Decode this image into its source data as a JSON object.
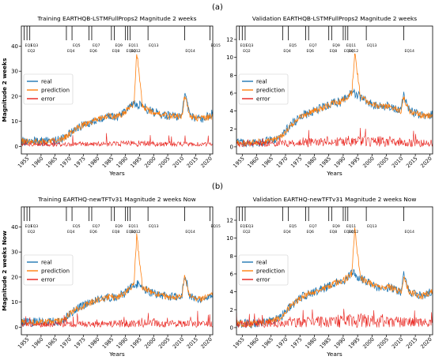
{
  "figure": {
    "label_a": "(a)",
    "label_b": "(b)"
  },
  "colors": {
    "real": "#1f77b4",
    "prediction": "#ff7f0e",
    "error": "#e8201a",
    "eq_line": "#000000"
  },
  "chart_data": [
    {
      "type": "line",
      "title": "Training  EARTHQB-LSTMFullProps2 Magnitude 2 weeks",
      "xlabel": "Years",
      "ylabel": "Magnitude 2 weeks",
      "xlim": [
        1953,
        2021
      ],
      "ylim": [
        -3,
        48
      ],
      "x_ticks": [
        1955,
        1960,
        1965,
        1970,
        1975,
        1980,
        1985,
        1990,
        1995,
        2000,
        2005,
        2010,
        2015,
        2020
      ],
      "y_ticks": [
        0,
        10,
        20,
        30,
        40
      ],
      "legend": {
        "placement": "center-left",
        "entries": [
          "real",
          "prediction",
          "error"
        ]
      },
      "events": [
        {
          "label": "EQ1",
          "year": 1954
        },
        {
          "label": "EQ2",
          "year": 1955
        },
        {
          "label": "EQ3",
          "year": 1956
        },
        {
          "label": "EQ4",
          "year": 1969
        },
        {
          "label": "EQ5",
          "year": 1971
        },
        {
          "label": "EQ6",
          "year": 1977
        },
        {
          "label": "EQ7",
          "year": 1978
        },
        {
          "label": "EQ8",
          "year": 1985
        },
        {
          "label": "EQ9",
          "year": 1986
        },
        {
          "label": "EQ10",
          "year": 1990
        },
        {
          "label": "EQ11",
          "year": 1990.8
        },
        {
          "label": "EQ12",
          "year": 1991.6
        },
        {
          "label": "EQ13",
          "year": 1998
        },
        {
          "label": "EQ14",
          "year": 2011
        },
        {
          "label": "EQ15",
          "year": 2020
        }
      ],
      "series": [
        {
          "name": "real",
          "x": [
            1953,
            1958,
            1963,
            1968,
            1972,
            1976,
            1980,
            1984,
            1987,
            1989,
            1991,
            1993,
            1994,
            1996,
            1999,
            2002,
            2006,
            2010,
            2011,
            2013,
            2017,
            2021
          ],
          "y": [
            2,
            2,
            2,
            3,
            7,
            9,
            11,
            12,
            12,
            13,
            15,
            17,
            17,
            16,
            14,
            13,
            12,
            12,
            21,
            12,
            11,
            13
          ]
        },
        {
          "name": "prediction",
          "x": [
            1953,
            1958,
            1963,
            1968,
            1972,
            1976,
            1980,
            1984,
            1987,
            1989,
            1991,
            1993,
            1994,
            1996,
            1999,
            2002,
            2006,
            2010,
            2011,
            2013,
            2017,
            2021
          ],
          "y": [
            2,
            2,
            2,
            3,
            7,
            9,
            11,
            12,
            12,
            13,
            15,
            17,
            38,
            16,
            14,
            13,
            12,
            12,
            20,
            12,
            11,
            12
          ]
        },
        {
          "name": "error",
          "x": [
            1953,
            1970,
            1994,
            2021
          ],
          "y": [
            0.8,
            1,
            1.5,
            1
          ]
        }
      ]
    },
    {
      "type": "line",
      "title": "Validation  EARTHQB-LSTMFullProps2 Magnitude 2 weeks",
      "xlabel": "Years",
      "ylabel": "",
      "xlim": [
        1953,
        2021
      ],
      "ylim": [
        -0.8,
        13.5
      ],
      "x_ticks": [
        1955,
        1960,
        1965,
        1970,
        1975,
        1980,
        1985,
        1990,
        1995,
        2000,
        2005,
        2010,
        2015,
        2020
      ],
      "y_ticks": [
        0,
        2,
        4,
        6,
        8,
        10,
        12
      ],
      "legend": {
        "placement": "center-right",
        "entries": [
          "real",
          "prediction",
          "error"
        ]
      },
      "events": [
        {
          "label": "EQ1",
          "year": 1954
        },
        {
          "label": "EQ2",
          "year": 1955
        },
        {
          "label": "EQ3",
          "year": 1956
        },
        {
          "label": "EQ4",
          "year": 1969
        },
        {
          "label": "EQ5",
          "year": 1971
        },
        {
          "label": "EQ6",
          "year": 1977
        },
        {
          "label": "EQ7",
          "year": 1978
        },
        {
          "label": "EQ8",
          "year": 1985
        },
        {
          "label": "EQ9",
          "year": 1986
        },
        {
          "label": "EQ10",
          "year": 1990
        },
        {
          "label": "EQ11",
          "year": 1990.8
        },
        {
          "label": "EQ12",
          "year": 1991.6
        },
        {
          "label": "EQ13",
          "year": 1998
        },
        {
          "label": "EQ14",
          "year": 2011
        }
      ],
      "series": [
        {
          "name": "real",
          "x": [
            1953,
            1958,
            1963,
            1968,
            1972,
            1976,
            1980,
            1984,
            1987,
            1989,
            1991,
            1993,
            1994,
            1996,
            1999,
            2002,
            2006,
            2010,
            2011,
            2013,
            2017,
            2021
          ],
          "y": [
            0.5,
            0.4,
            0.6,
            1,
            2.5,
            3.5,
            4,
            4.5,
            5,
            5,
            5.5,
            6,
            6,
            5.5,
            5,
            4.5,
            4.5,
            4,
            6,
            4,
            3.5,
            3.5
          ]
        },
        {
          "name": "prediction",
          "x": [
            1953,
            1958,
            1963,
            1968,
            1972,
            1976,
            1980,
            1984,
            1987,
            1989,
            1991,
            1993,
            1994,
            1996,
            1999,
            2002,
            2006,
            2010,
            2011,
            2013,
            2017,
            2021
          ],
          "y": [
            0.5,
            0.4,
            0.6,
            1,
            2.5,
            3.5,
            4,
            4.5,
            5,
            5,
            5.5,
            6,
            10.5,
            5.5,
            5,
            4.5,
            4.5,
            4,
            5.5,
            4,
            3.5,
            3.5
          ]
        },
        {
          "name": "error",
          "x": [
            1953,
            1970,
            1994,
            2021
          ],
          "y": [
            0.4,
            0.5,
            0.8,
            0.5
          ]
        }
      ]
    },
    {
      "type": "line",
      "title": "Training  EARTHQ-newTFTv31 Magnitude 2 weeks Now",
      "xlabel": "Years",
      "ylabel": "Magnitude 2 weeks Now",
      "xlim": [
        1953,
        2021
      ],
      "ylim": [
        -3,
        48
      ],
      "x_ticks": [
        1955,
        1960,
        1965,
        1970,
        1975,
        1980,
        1985,
        1990,
        1995,
        2000,
        2005,
        2010,
        2015,
        2020
      ],
      "y_ticks": [
        0,
        10,
        20,
        30,
        40
      ],
      "legend": {
        "placement": "center-left",
        "entries": [
          "real",
          "prediction",
          "error"
        ]
      },
      "events": [
        {
          "label": "EQ1",
          "year": 1954
        },
        {
          "label": "EQ2",
          "year": 1955
        },
        {
          "label": "EQ3",
          "year": 1956
        },
        {
          "label": "EQ4",
          "year": 1969
        },
        {
          "label": "EQ5",
          "year": 1971
        },
        {
          "label": "EQ6",
          "year": 1977
        },
        {
          "label": "EQ7",
          "year": 1978
        },
        {
          "label": "EQ8",
          "year": 1985
        },
        {
          "label": "EQ9",
          "year": 1986
        },
        {
          "label": "EQ10",
          "year": 1990
        },
        {
          "label": "EQ11",
          "year": 1990.8
        },
        {
          "label": "EQ12",
          "year": 1991.6
        },
        {
          "label": "EQ13",
          "year": 1998
        },
        {
          "label": "EQ14",
          "year": 2011
        },
        {
          "label": "EQ15",
          "year": 2020
        }
      ],
      "series": [
        {
          "name": "real",
          "x": [
            1953,
            1958,
            1963,
            1968,
            1972,
            1976,
            1980,
            1984,
            1987,
            1989,
            1991,
            1993,
            1994,
            1996,
            1999,
            2002,
            2006,
            2010,
            2011,
            2013,
            2017,
            2021
          ],
          "y": [
            2,
            2,
            2,
            3,
            7,
            9,
            11,
            12,
            12,
            13,
            15,
            17,
            17,
            16,
            14,
            13,
            12,
            12,
            21,
            12,
            11,
            13
          ]
        },
        {
          "name": "prediction",
          "x": [
            1953,
            1958,
            1963,
            1968,
            1972,
            1976,
            1980,
            1984,
            1987,
            1989,
            1991,
            1993,
            1994,
            1996,
            1999,
            2002,
            2006,
            2010,
            2011,
            2013,
            2017,
            2021
          ],
          "y": [
            2,
            2,
            2,
            3,
            7,
            9,
            11,
            12,
            12,
            13,
            15,
            17,
            37,
            16,
            14,
            13,
            12,
            12,
            20,
            12,
            11,
            13
          ]
        },
        {
          "name": "error",
          "x": [
            1953,
            1970,
            1994,
            2021
          ],
          "y": [
            1,
            1.5,
            2,
            1.5
          ]
        }
      ]
    },
    {
      "type": "line",
      "title": "Validation  EARTHQ-newTFTv31 Magnitude 2 weeks Now",
      "xlabel": "Years",
      "ylabel": "",
      "xlim": [
        1953,
        2021
      ],
      "ylim": [
        -0.8,
        13.5
      ],
      "x_ticks": [
        1955,
        1960,
        1965,
        1970,
        1975,
        1980,
        1985,
        1990,
        1995,
        2000,
        2005,
        2010,
        2015,
        2020
      ],
      "y_ticks": [
        0,
        2,
        4,
        6,
        8,
        10,
        12
      ],
      "legend": {
        "placement": "center-right",
        "entries": [
          "real",
          "prediction",
          "error"
        ]
      },
      "events": [
        {
          "label": "EQ1",
          "year": 1954
        },
        {
          "label": "EQ2",
          "year": 1955
        },
        {
          "label": "EQ3",
          "year": 1956
        },
        {
          "label": "EQ4",
          "year": 1969
        },
        {
          "label": "EQ5",
          "year": 1971
        },
        {
          "label": "EQ6",
          "year": 1977
        },
        {
          "label": "EQ7",
          "year": 1978
        },
        {
          "label": "EQ8",
          "year": 1985
        },
        {
          "label": "EQ9",
          "year": 1986
        },
        {
          "label": "EQ10",
          "year": 1990
        },
        {
          "label": "EQ11",
          "year": 1990.8
        },
        {
          "label": "EQ12",
          "year": 1991.6
        },
        {
          "label": "EQ13",
          "year": 1998
        },
        {
          "label": "EQ14",
          "year": 2011
        }
      ],
      "series": [
        {
          "name": "real",
          "x": [
            1953,
            1958,
            1963,
            1968,
            1972,
            1976,
            1980,
            1984,
            1987,
            1989,
            1991,
            1993,
            1994,
            1996,
            1999,
            2002,
            2006,
            2010,
            2011,
            2013,
            2017,
            2021
          ],
          "y": [
            0.5,
            0.4,
            0.6,
            1,
            2.5,
            3.5,
            4,
            4.5,
            5,
            5,
            5.5,
            6,
            6,
            5.5,
            5,
            4.5,
            4.5,
            4,
            6,
            4,
            3.5,
            4
          ]
        },
        {
          "name": "prediction",
          "x": [
            1953,
            1958,
            1963,
            1968,
            1972,
            1976,
            1980,
            1984,
            1987,
            1989,
            1991,
            1993,
            1994,
            1996,
            1999,
            2002,
            2006,
            2010,
            2011,
            2013,
            2017,
            2021
          ],
          "y": [
            0.5,
            0.4,
            0.6,
            1,
            2.5,
            3.5,
            4,
            4.5,
            5,
            5,
            5.5,
            6,
            11,
            5.5,
            5,
            4.5,
            4.5,
            4,
            5.5,
            4,
            3.5,
            4
          ]
        },
        {
          "name": "error",
          "x": [
            1953,
            1970,
            1994,
            2021
          ],
          "y": [
            0.5,
            0.6,
            1,
            0.6
          ]
        }
      ]
    }
  ]
}
